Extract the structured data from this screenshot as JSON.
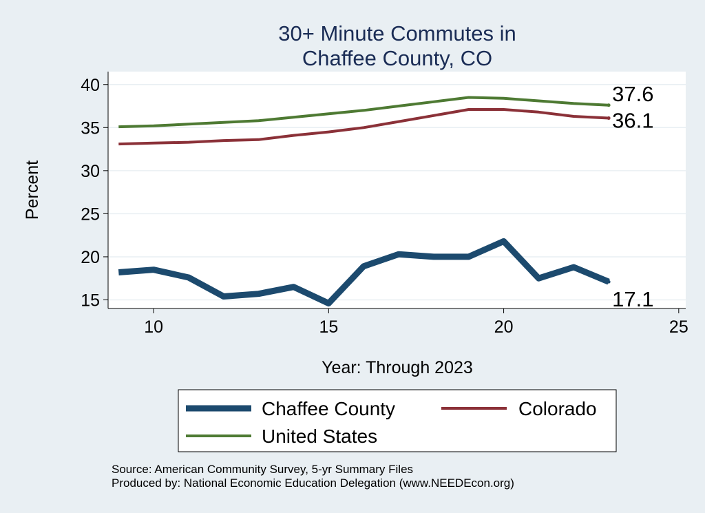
{
  "chart_data": {
    "type": "line",
    "title": [
      "30+ Minute Commutes in",
      "Chaffee County, CO"
    ],
    "xlabel": "Year: Through 2023",
    "ylabel": "Percent",
    "xlim": [
      8.7,
      25.2
    ],
    "ylim": [
      14,
      41.5
    ],
    "xticks": [
      10,
      15,
      20,
      25
    ],
    "yticks": [
      15,
      20,
      25,
      30,
      35,
      40
    ],
    "grid": true,
    "x": [
      9,
      10,
      11,
      12,
      13,
      14,
      15,
      16,
      17,
      18,
      19,
      20,
      21,
      22,
      23
    ],
    "series": [
      {
        "name": "Chaffee County",
        "color": "#1c4a6e",
        "values": [
          18.2,
          18.5,
          17.6,
          15.4,
          15.7,
          16.5,
          14.6,
          18.9,
          20.3,
          20.0,
          20.0,
          21.8,
          17.5,
          18.8,
          17.1
        ],
        "end_label": "17.1"
      },
      {
        "name": "Colorado",
        "color": "#8b3138",
        "values": [
          33.1,
          33.2,
          33.3,
          33.5,
          33.6,
          34.1,
          34.5,
          35.0,
          35.7,
          36.4,
          37.1,
          37.1,
          36.8,
          36.3,
          36.1
        ],
        "end_label": "36.1"
      },
      {
        "name": "United States",
        "color": "#4e7a33",
        "values": [
          35.1,
          35.2,
          35.4,
          35.6,
          35.8,
          36.2,
          36.6,
          37.0,
          37.5,
          38.0,
          38.5,
          38.4,
          38.1,
          37.8,
          37.6
        ],
        "end_label": "37.6"
      }
    ],
    "legend": {
      "placement": "bottom",
      "items": [
        "Chaffee County",
        "Colorado",
        "United States"
      ]
    },
    "source_lines": [
      "Source: American Community Survey, 5-yr Summary Files",
      "Produced by: National Economic Education Delegation (www.NEEDEcon.org)"
    ]
  }
}
